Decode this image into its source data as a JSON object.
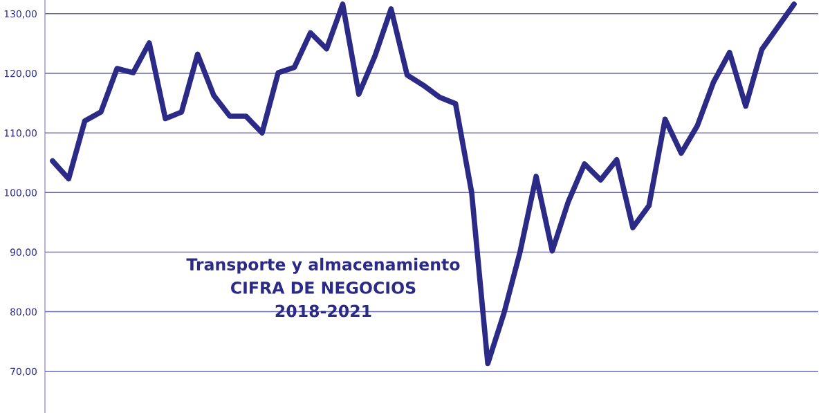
{
  "chart_data": {
    "type": "line",
    "title": "Transporte y almacenamiento\nCIFRA DE NEGOCIOS\n2018-2021",
    "categories": [
      null,
      null,
      null,
      null,
      null,
      null,
      null,
      null,
      null,
      null,
      null,
      null,
      null,
      null,
      null,
      null,
      null,
      null,
      null,
      null,
      null,
      null,
      null,
      null,
      null,
      null,
      null,
      null,
      null,
      null,
      null,
      null,
      null,
      null,
      null,
      null,
      null,
      null,
      null,
      null,
      null,
      null,
      null,
      null,
      null,
      null,
      null
    ],
    "series": [
      {
        "color": "#2b2a86",
        "values": [
          105.3,
          102.3,
          112.0,
          113.5,
          120.8,
          120.1,
          125.1,
          112.4,
          113.5,
          123.2,
          116.3,
          112.8,
          112.8,
          110.0,
          120.1,
          121.0,
          126.8,
          124.1,
          131.6,
          116.5,
          122.9,
          130.8,
          119.7,
          118.0,
          116.0,
          114.9,
          100.0,
          71.3,
          79.7,
          90.0,
          102.7,
          90.2,
          98.5,
          104.8,
          102.1,
          105.5,
          94.1,
          97.8,
          112.3,
          106.6,
          111.2,
          118.5,
          123.5,
          114.5,
          124.0,
          127.8,
          131.6
        ]
      }
    ],
    "ylim": [
      63,
      132.3
    ],
    "yticks": [
      {
        "value": 70,
        "label": "70,00"
      },
      {
        "value": 80,
        "label": "80,00"
      },
      {
        "value": 90,
        "label": "90,00"
      },
      {
        "value": 100,
        "label": "100,00"
      },
      {
        "value": 110,
        "label": "110,00"
      },
      {
        "value": 120,
        "label": "120,00"
      },
      {
        "value": 130,
        "label": "130,00"
      }
    ],
    "grid": "y",
    "tick_labels": "y",
    "marker": "none",
    "line_style": "solid"
  }
}
